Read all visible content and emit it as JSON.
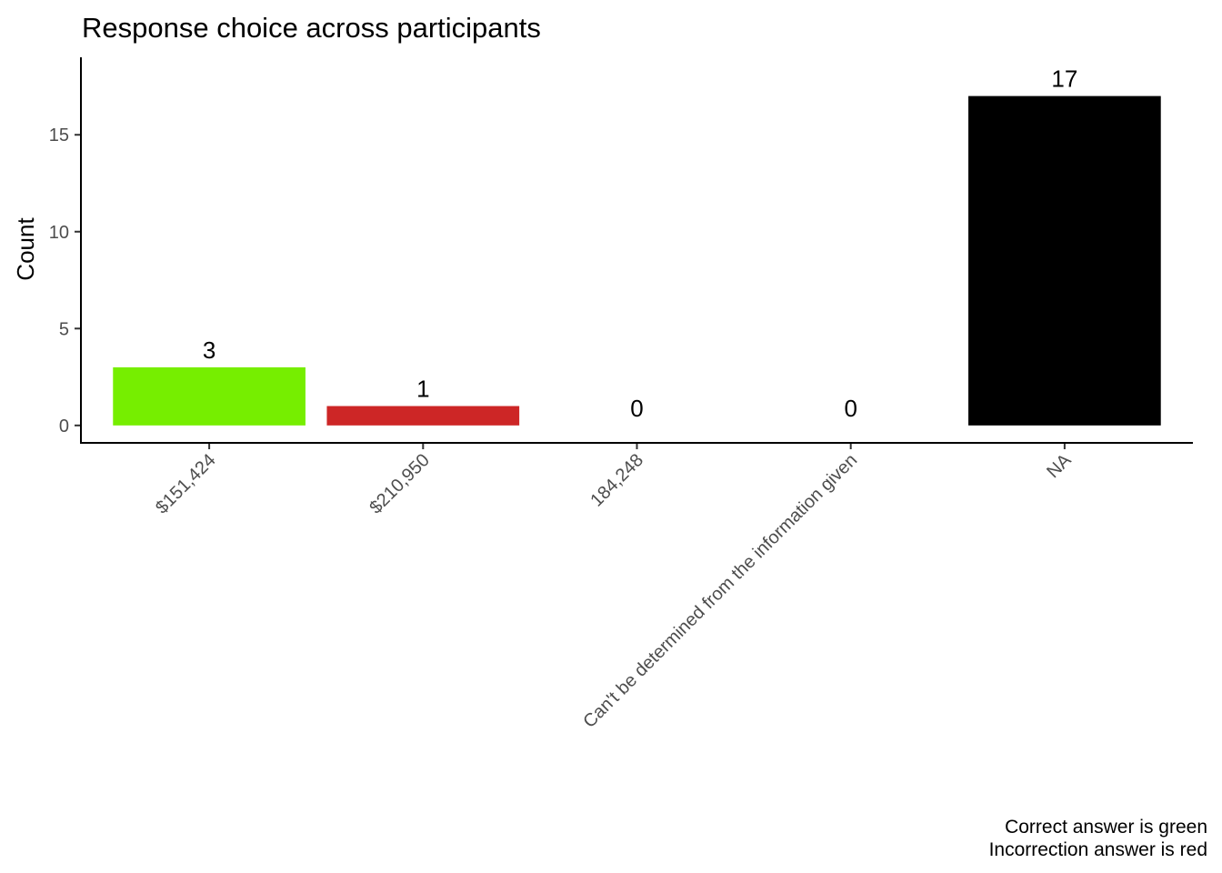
{
  "chart_data": {
    "type": "bar",
    "title": "Response choice across participants",
    "xlabel": "",
    "ylabel": "Count",
    "categories": [
      "$151,424",
      "$210,950",
      "184,248",
      "Can't be determined from the information given",
      "NA"
    ],
    "values": [
      3,
      1,
      0,
      0,
      17
    ],
    "bar_colors": [
      "#76EE00",
      "#CD2626",
      "#000000",
      "#000000",
      "#000000"
    ],
    "ylim": [
      -0.9,
      19
    ],
    "yticks": [
      0,
      5,
      10,
      15
    ],
    "ytick_labels": [
      "0",
      "5",
      "10",
      "15"
    ],
    "grid": false,
    "legend": "none",
    "caption": [
      "Correct answer is green",
      "Incorrection answer is red"
    ]
  }
}
